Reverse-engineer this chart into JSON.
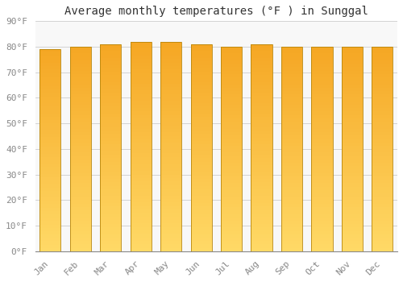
{
  "title": "Average monthly temperatures (°F ) in Sunggal",
  "months": [
    "Jan",
    "Feb",
    "Mar",
    "Apr",
    "May",
    "Jun",
    "Jul",
    "Aug",
    "Sep",
    "Oct",
    "Nov",
    "Dec"
  ],
  "values": [
    79,
    80,
    81,
    82,
    82,
    81,
    80,
    81,
    80,
    80,
    80,
    80
  ],
  "ylim": [
    0,
    90
  ],
  "yticks": [
    0,
    10,
    20,
    30,
    40,
    50,
    60,
    70,
    80,
    90
  ],
  "ytick_labels": [
    "0°F",
    "10°F",
    "20°F",
    "30°F",
    "40°F",
    "50°F",
    "60°F",
    "70°F",
    "80°F",
    "90°F"
  ],
  "bar_color_top": "#F5A623",
  "bar_color_bottom": "#FFD966",
  "bar_edge_color": "#B8860B",
  "background_color": "#FFFFFF",
  "plot_bg_color": "#F8F8F8",
  "grid_color": "#CCCCCC",
  "title_fontsize": 10,
  "tick_fontsize": 8,
  "title_color": "#333333",
  "tick_color": "#888888",
  "bar_width": 0.7,
  "n_gradient_steps": 60
}
